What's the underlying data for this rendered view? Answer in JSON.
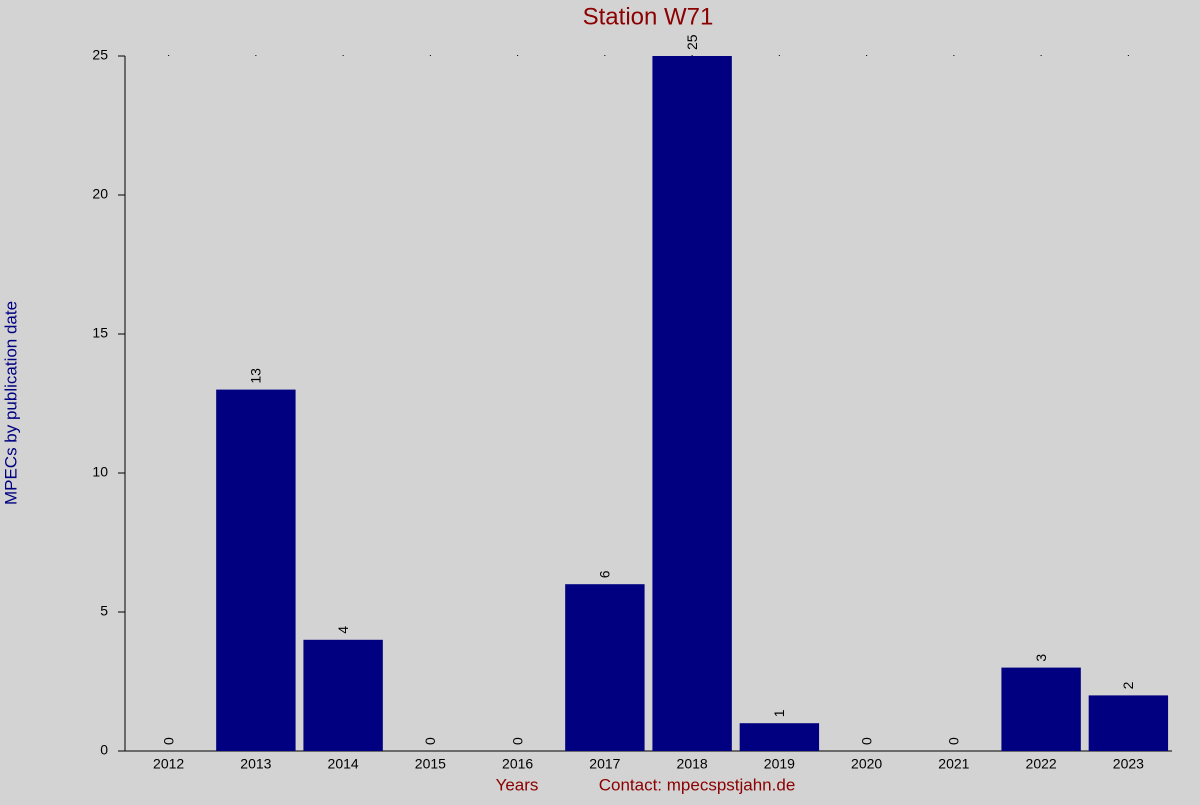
{
  "chart_data": {
    "type": "bar",
    "title": "Station W71",
    "y_label": "MPECs by publication date",
    "x_label": "Years",
    "note": "Contact: mpecspstjahn.de",
    "categories": [
      "2012",
      "2013",
      "2014",
      "2015",
      "2016",
      "2017",
      "2018",
      "2019",
      "2020",
      "2021",
      "2022",
      "2023"
    ],
    "values": [
      0,
      13,
      4,
      0,
      0,
      6,
      25,
      1,
      0,
      0,
      3,
      2
    ],
    "color": "#000080",
    "ylim": [
      0,
      25
    ],
    "yticks": [
      0,
      5,
      10,
      15,
      20,
      25
    ],
    "grid": false
  }
}
